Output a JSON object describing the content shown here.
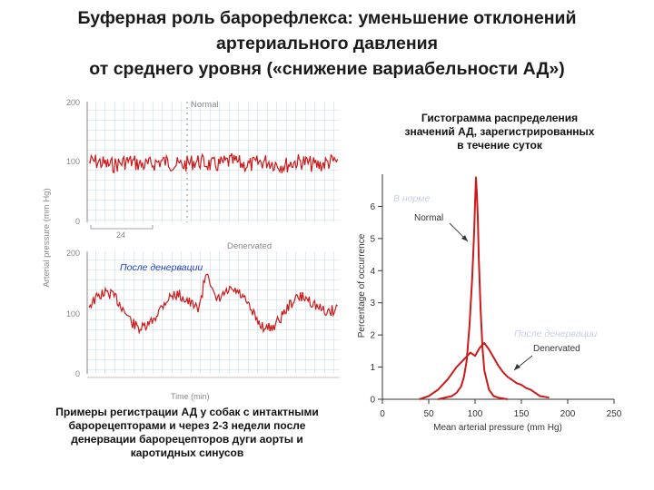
{
  "title": {
    "line1": "Буферная роль барорефлекса: уменьшение отклонений",
    "line2": "артериального давления",
    "line3": "от среднего уровня («снижение вариабельности АД»)"
  },
  "left_figure": {
    "ylabel": "Arterial pressure (mm Hg)",
    "top_panel": {
      "label": "Normal",
      "yticks": [
        "200",
        "100",
        "0"
      ],
      "scale_bar": "24"
    },
    "bottom_panel": {
      "label": "Denervated",
      "yticks": [
        "200",
        "100",
        "0"
      ],
      "time_label": "Time (min)"
    },
    "annotation_after": "После денервации"
  },
  "right_caption": {
    "line1": "Гистограмма распределения",
    "line2": "значений АД, зарегистрированных",
    "line3": "в течение суток"
  },
  "left_caption": {
    "line1": "Примеры регистрации АД у собак с интактными",
    "line2": "барорецепторами и через 2-3 недели после",
    "line3": "денервации барорецепторов дуги аорты и",
    "line4": "каротидных синусов"
  },
  "chart_data": {
    "type": "line",
    "xlabel": "Mean arterial pressure (mm Hg)",
    "ylabel": "Percentage of occurrence",
    "xlim": [
      0,
      250
    ],
    "ylim": [
      0,
      7
    ],
    "xticks": [
      "0",
      "50",
      "100",
      "150",
      "200",
      "250"
    ],
    "yticks": [
      "0",
      "1",
      "2",
      "3",
      "4",
      "5",
      "6"
    ],
    "annotations": {
      "normal_ru": "В норме",
      "after_ru": "После денервации"
    },
    "series": [
      {
        "name": "Normal",
        "color": "#cc1a1a",
        "x": [
          60,
          75,
          80,
          85,
          88,
          91,
          94,
          97,
          99,
          100,
          101,
          102,
          103,
          104,
          106,
          108,
          110,
          115,
          120,
          125,
          135
        ],
        "y": [
          0.0,
          0.1,
          0.2,
          0.4,
          0.7,
          1.2,
          2.3,
          3.8,
          5.2,
          6.1,
          6.9,
          6.4,
          5.6,
          4.4,
          2.8,
          1.6,
          0.9,
          0.3,
          0.1,
          0.05,
          0.0
        ]
      },
      {
        "name": "Denervated",
        "color": "#cc1a1a",
        "x": [
          40,
          50,
          60,
          70,
          75,
          80,
          85,
          90,
          95,
          100,
          105,
          110,
          115,
          120,
          125,
          130,
          135,
          140,
          145,
          150,
          155,
          160,
          165,
          170,
          180
        ],
        "y": [
          0.0,
          0.1,
          0.3,
          0.6,
          0.8,
          1.0,
          1.15,
          1.3,
          1.45,
          1.35,
          1.6,
          1.75,
          1.55,
          1.3,
          1.05,
          0.85,
          0.7,
          0.6,
          0.5,
          0.45,
          0.35,
          0.3,
          0.2,
          0.1,
          0.05
        ]
      }
    ]
  }
}
